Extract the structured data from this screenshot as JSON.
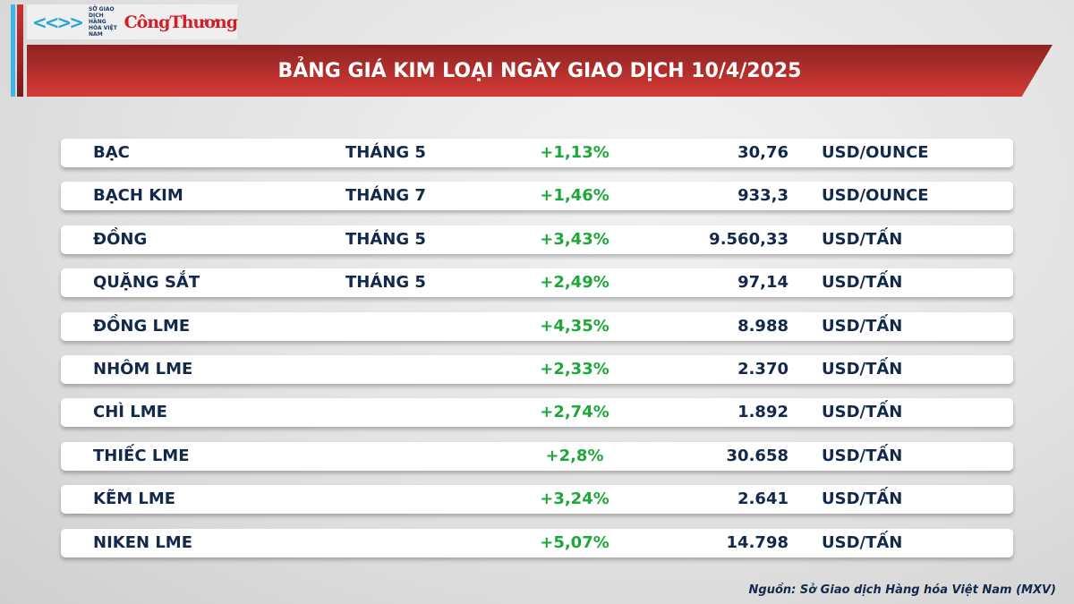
{
  "logo": {
    "org_text": "SỞ GIAO DỊCH HÀNG HÓA VIỆT NAM",
    "brand": "CôngThương"
  },
  "title": "BẢNG GIÁ KIM LOẠI NGÀY GIAO DỊCH 10/4/2025",
  "colors": {
    "banner": "#c33",
    "text": "#13294b",
    "positive": "#1fa83a",
    "accent_blue": "#3bb6e8"
  },
  "rows": [
    {
      "name": "BẠC",
      "month": "THÁNG 5",
      "change": "+1,13%",
      "price": "30,76",
      "unit": "USD/OUNCE"
    },
    {
      "name": "BẠCH KIM",
      "month": "THÁNG 7",
      "change": "+1,46%",
      "price": "933,3",
      "unit": "USD/OUNCE"
    },
    {
      "name": "ĐỒNG",
      "month": "THÁNG 5",
      "change": "+3,43%",
      "price": "9.560,33",
      "unit": "USD/TẤN"
    },
    {
      "name": "QUẶNG SẮT",
      "month": "THÁNG 5",
      "change": "+2,49%",
      "price": "97,14",
      "unit": "USD/TẤN"
    },
    {
      "name": "ĐỒNG LME",
      "month": "",
      "change": "+4,35%",
      "price": "8.988",
      "unit": "USD/TẤN"
    },
    {
      "name": "NHÔM LME",
      "month": "",
      "change": "+2,33%",
      "price": "2.370",
      "unit": "USD/TẤN"
    },
    {
      "name": "CHÌ LME",
      "month": "",
      "change": "+2,74%",
      "price": "1.892",
      "unit": "USD/TẤN"
    },
    {
      "name": "THIẾC LME",
      "month": "",
      "change": "+2,8%",
      "price": "30.658",
      "unit": "USD/TẤN"
    },
    {
      "name": "KẼM LME",
      "month": "",
      "change": "+3,24%",
      "price": "2.641",
      "unit": "USD/TẤN"
    },
    {
      "name": "NIKEN LME",
      "month": "",
      "change": "+5,07%",
      "price": "14.798",
      "unit": "USD/TẤN"
    }
  ],
  "source": "Nguồn: Sở Giao dịch Hàng hóa Việt Nam (MXV)"
}
